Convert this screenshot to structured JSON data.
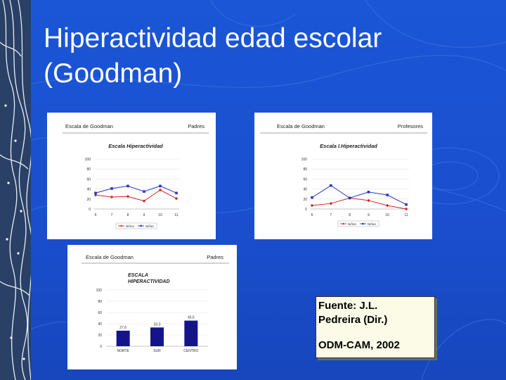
{
  "slide": {
    "title_line1": "Hiperactividad edad escolar",
    "title_line2": "(Goodman)",
    "source": {
      "line1": "Fuente: J.L.",
      "line2": "Pedreira (Dir.)",
      "line3": "ODM-CAM, 2002"
    },
    "colors": {
      "background": "#1a4fcf",
      "title": "#ffffff",
      "note_bg": "#fbfbe8"
    }
  },
  "panels": [
    {
      "header_left": "Escala de Goodman",
      "header_right": "Padres"
    },
    {
      "header_left": "Escala de Goodman",
      "header_right": "Profesores"
    },
    {
      "header_left": "Escala de Goodman",
      "header_right": "Padres"
    }
  ],
  "chart_data": [
    {
      "type": "line",
      "title": "Escala Hiperactividad",
      "x": [
        6,
        7,
        8,
        9,
        10,
        11
      ],
      "y_ticks": [
        0,
        20,
        40,
        60,
        80,
        100
      ],
      "ylim": [
        0,
        100
      ],
      "series": [
        {
          "name": "Niños",
          "color": "#d42020",
          "marker": "diamond",
          "values": [
            28,
            24,
            25,
            16,
            38,
            21
          ]
        },
        {
          "name": "Niñas",
          "color": "#2a35c2",
          "marker": "square",
          "values": [
            32,
            41,
            46,
            35,
            46,
            32
          ]
        }
      ],
      "legend": "bottom"
    },
    {
      "type": "line",
      "title": "Escala I.Hiperactividad",
      "x": [
        6,
        7,
        8,
        9,
        10,
        11
      ],
      "y_ticks": [
        0,
        20,
        40,
        60,
        80,
        100
      ],
      "ylim": [
        0,
        100
      ],
      "series": [
        {
          "name": "Niños",
          "color": "#d42020",
          "marker": "diamond",
          "values": [
            7,
            11,
            22,
            17,
            7,
            0
          ]
        },
        {
          "name": "Niñas",
          "color": "#2a35c2",
          "marker": "square",
          "values": [
            23,
            47,
            22,
            34,
            28,
            9
          ]
        }
      ],
      "legend": "bottom"
    },
    {
      "type": "bar",
      "title_line1": "ESCALA",
      "title_line2": "HIPERACTIVIDAD",
      "categories": [
        "NORTE",
        "SUR",
        "CENTRO"
      ],
      "values": [
        27.6,
        33.3,
        45.5
      ],
      "value_labels": [
        "27,6",
        "33,3",
        "45,5"
      ],
      "y_ticks": [
        0,
        20,
        40,
        60,
        80,
        100
      ],
      "y_tick_labels": [
        "0",
        "20",
        "40",
        "60",
        "80",
        "100"
      ],
      "ylim": [
        0,
        100
      ],
      "color": "#14148a"
    }
  ]
}
